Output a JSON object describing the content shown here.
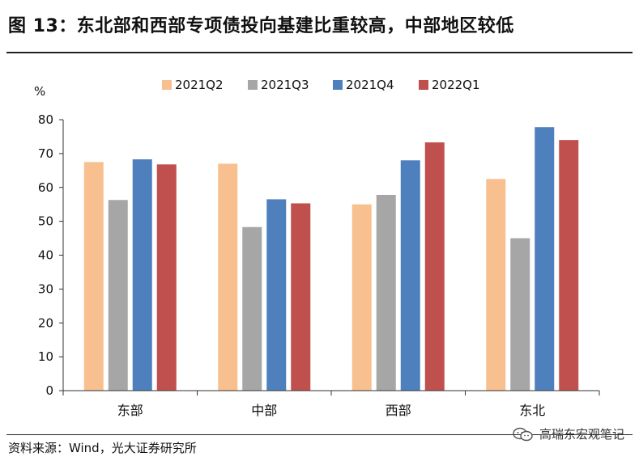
{
  "figure": {
    "title": "图 13：东北部和西部专项债投向基建比重较高，中部地区较低",
    "source": "资料来源：Wind，光大证券研究所",
    "watermark": "高瑞东宏观笔记",
    "watermark_icon": "wechat-icon"
  },
  "chart_data": {
    "type": "bar",
    "title": "",
    "ylabel": "%",
    "xlabel": "",
    "ylim": [
      0,
      80
    ],
    "yticks": [
      0,
      10,
      20,
      30,
      40,
      50,
      60,
      70,
      80
    ],
    "categories": [
      "东部",
      "中部",
      "西部",
      "东北"
    ],
    "legend_position": "top",
    "grid": false,
    "series": [
      {
        "name": "2021Q2",
        "color": "#F8C08F",
        "values": [
          67.5,
          67.0,
          55.0,
          62.5
        ]
      },
      {
        "name": "2021Q3",
        "color": "#A6A6A6",
        "values": [
          56.3,
          48.3,
          57.8,
          45.0
        ]
      },
      {
        "name": "2021Q4",
        "color": "#4E80BD",
        "values": [
          68.3,
          56.5,
          68.0,
          77.8
        ]
      },
      {
        "name": "2022Q1",
        "color": "#C0504D",
        "values": [
          66.8,
          55.3,
          73.3,
          74.0
        ]
      }
    ]
  }
}
